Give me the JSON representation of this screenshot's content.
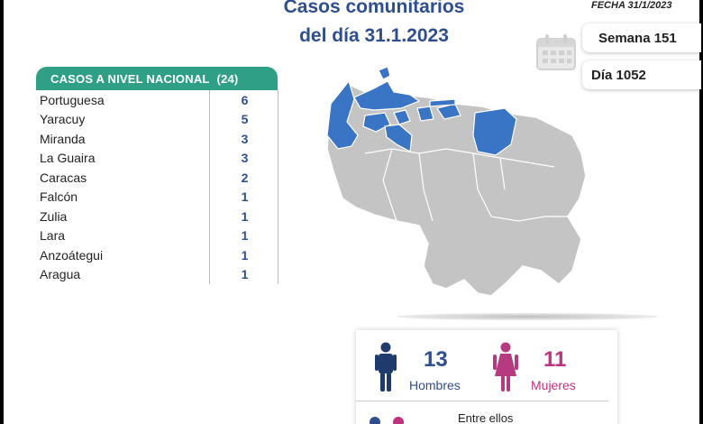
{
  "header": {
    "title_line1": "Casos comunitarios",
    "title_line2": "del día 31.1.2023",
    "fecha": "FECHA 31/1/2023",
    "semana": "Semana 151",
    "dia": "Día 1052"
  },
  "table": {
    "heading": "CASOS A NIVEL NACIONAL",
    "total": "(24)",
    "rows": [
      {
        "state": "Portuguesa",
        "count": "6"
      },
      {
        "state": "Yaracuy",
        "count": "5"
      },
      {
        "state": "Miranda",
        "count": "3"
      },
      {
        "state": "La Guaira",
        "count": "3"
      },
      {
        "state": "Caracas",
        "count": "2"
      },
      {
        "state": "Falcón",
        "count": "1"
      },
      {
        "state": "Zulia",
        "count": "1"
      },
      {
        "state": "Lara",
        "count": "1"
      },
      {
        "state": "Anzoátegui",
        "count": "1"
      },
      {
        "state": "Aragua",
        "count": "1"
      }
    ]
  },
  "gender": {
    "men_count": "13",
    "men_label": "Hombres",
    "women_count": "11",
    "women_label": "Mujeres",
    "note": "Entre ellos"
  },
  "colors": {
    "title_blue": "#2e4e8f",
    "header_green": "#2f9f86",
    "women_pink": "#c0317e",
    "map_highlight": "#3a74c4",
    "map_gray": "#c4c4c4"
  },
  "icons": [
    "calendar-icon",
    "man-icon",
    "woman-icon"
  ]
}
